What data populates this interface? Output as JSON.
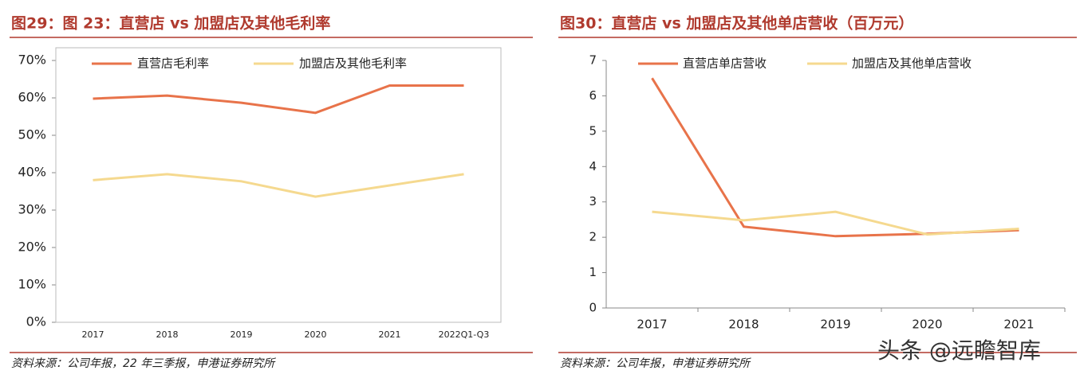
{
  "chart_data": [
    {
      "type": "line",
      "title": "图29：图 23：直营店 vs 加盟店及其他毛利率",
      "categories": [
        "2017",
        "2018",
        "2019",
        "2020",
        "2021",
        "2022Q1-Q3"
      ],
      "series": [
        {
          "name": "直营店毛利率",
          "color": "#e8734a",
          "values": [
            59.8,
            60.6,
            58.7,
            56.0,
            63.3,
            63.3
          ]
        },
        {
          "name": "加盟店及其他毛利率",
          "color": "#f5d98f",
          "values": [
            38.0,
            39.6,
            37.7,
            33.6,
            36.6,
            39.6
          ]
        }
      ],
      "ylim": [
        0,
        70
      ],
      "yticks": [
        {
          "value": 0,
          "label": "0%"
        },
        {
          "value": 10,
          "label": "10%"
        },
        {
          "value": 20,
          "label": "20%"
        },
        {
          "value": 30,
          "label": "30%"
        },
        {
          "value": 40,
          "label": "40%"
        },
        {
          "value": 50,
          "label": "50%"
        },
        {
          "value": 60,
          "label": "60%"
        },
        {
          "value": 70,
          "label": "70%"
        }
      ],
      "source": "资料来源：公司年报，22 年三季报，申港证券研究所"
    },
    {
      "type": "line",
      "title": "图30：直营店 vs 加盟店及其他单店营收（百万元）",
      "categories": [
        "2017",
        "2018",
        "2019",
        "2020",
        "2021"
      ],
      "series": [
        {
          "name": "直营店单店营收",
          "color": "#e8734a",
          "values": [
            6.5,
            2.3,
            2.03,
            2.1,
            2.2
          ]
        },
        {
          "name": "加盟店及其他单店营收",
          "color": "#f5d98f",
          "values": [
            2.72,
            2.48,
            2.72,
            2.08,
            2.24
          ]
        }
      ],
      "ylim": [
        0,
        7
      ],
      "yticks": [
        0,
        1,
        2,
        3,
        4,
        5,
        6,
        7
      ],
      "source": "资料来源：公司年报，申港证券研究所"
    }
  ],
  "watermark": "头条 @远瞻智库"
}
